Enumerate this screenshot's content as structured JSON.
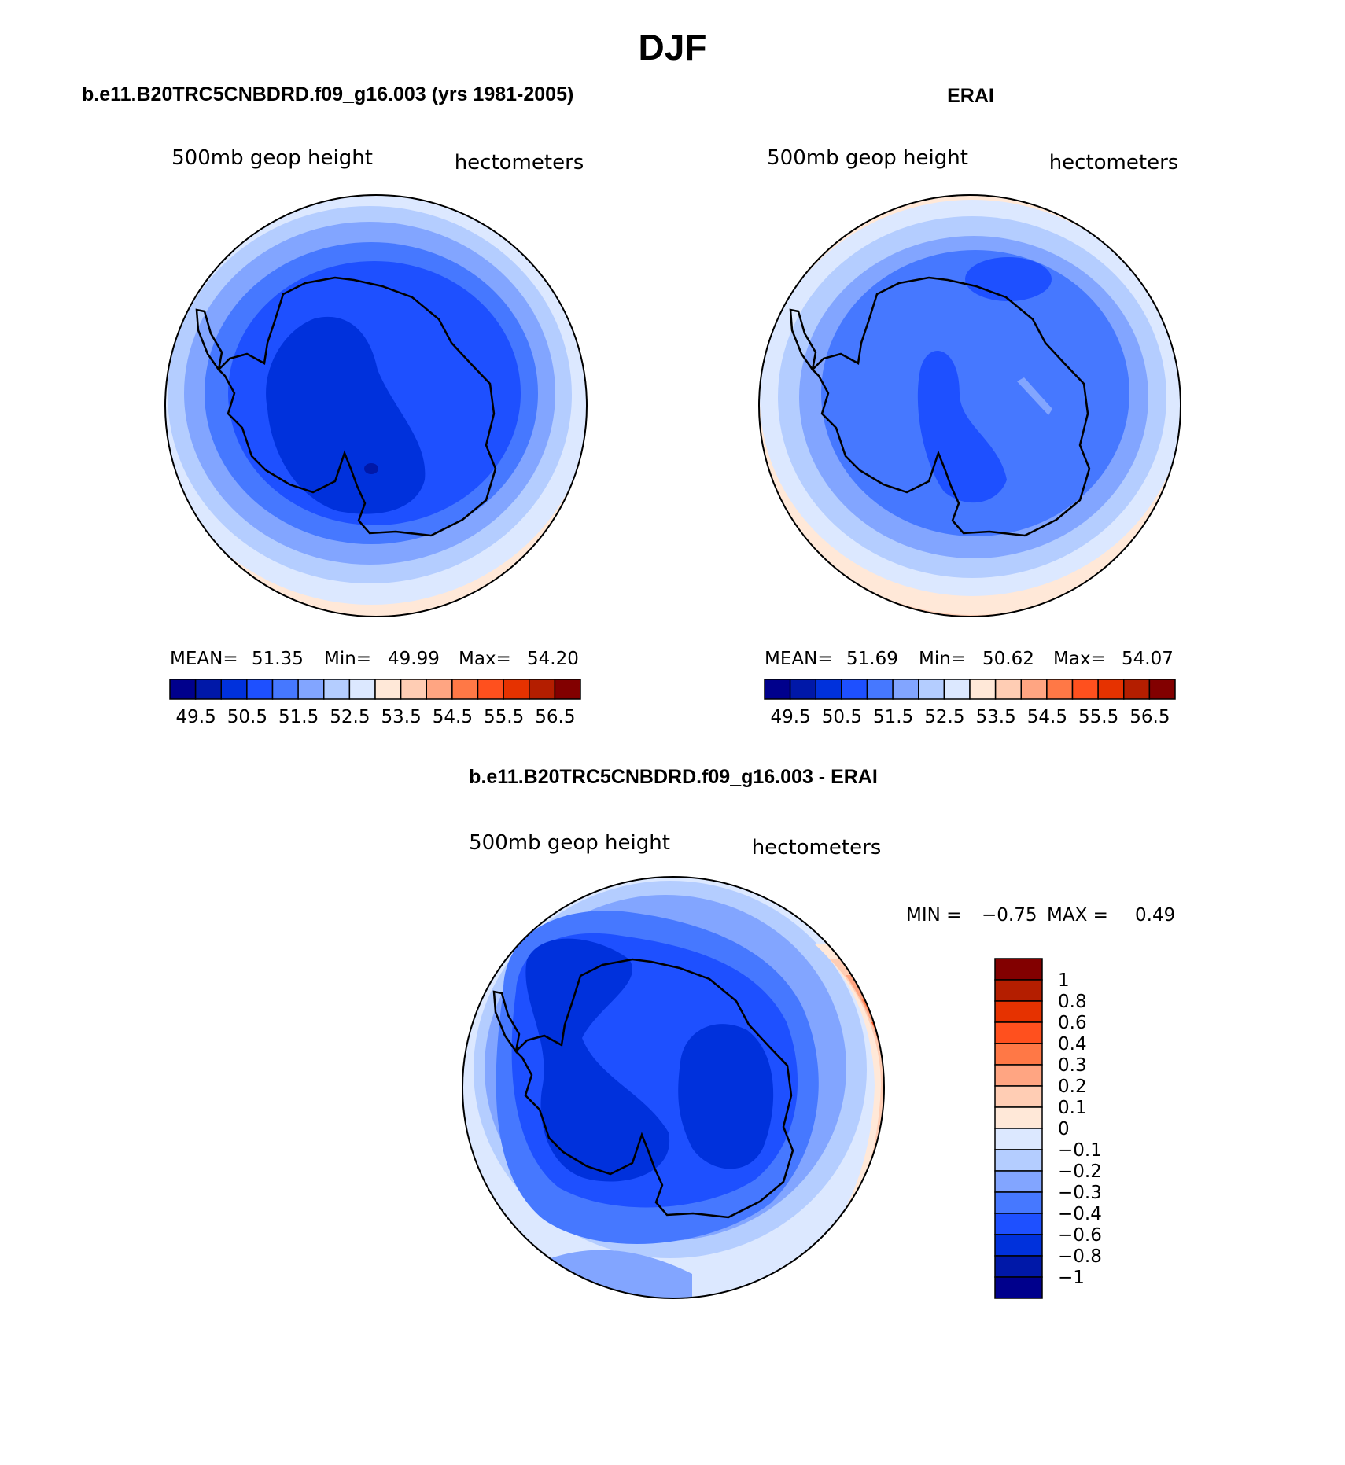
{
  "figure": {
    "season": "DJF",
    "case_title": "b.e11.B20TRC5CNBDRD.f09_g16.003 (yrs 1981-2005)",
    "obs_title": "ERAI",
    "diff_title": "b.e11.B20TRC5CNBDRD.f09_g16.003 - ERAI"
  },
  "panels": {
    "case": {
      "variable": "500mb geop height",
      "units": "hectometers",
      "stats": {
        "mean_label": "MEAN=",
        "mean": "51.35",
        "min_label": "Min=",
        "min": "49.99",
        "max_label": "Max=",
        "max": "54.20"
      }
    },
    "obs": {
      "variable": "500mb geop height",
      "units": "hectometers",
      "stats": {
        "mean_label": "MEAN=",
        "mean": "51.69",
        "min_label": "Min=",
        "min": "50.62",
        "max_label": "Max=",
        "max": "54.07"
      }
    },
    "diff": {
      "variable": "500mb geop height",
      "units": "hectometers",
      "stats": {
        "min_label": "MIN =",
        "min": "−0.75",
        "max_label": "MAX =",
        "max": "0.49"
      }
    }
  },
  "colorbars": {
    "abs_labels": [
      "49.5",
      "50.5",
      "51.5",
      "52.5",
      "53.5",
      "54.5",
      "55.5",
      "56.5"
    ],
    "abs_colors": [
      "#00008c",
      "#0018a8",
      "#0031dc",
      "#1e50ff",
      "#4678ff",
      "#82a5ff",
      "#b4cdff",
      "#dce8ff",
      "#ffe8d8",
      "#ffcdb4",
      "#ffa582",
      "#ff7846",
      "#ff501e",
      "#e63200",
      "#b41e00",
      "#820000"
    ],
    "diff_labels": [
      "1",
      "0.8",
      "0.6",
      "0.4",
      "0.3",
      "0.2",
      "0.1",
      "0",
      "−0.1",
      "−0.2",
      "−0.3",
      "−0.4",
      "−0.6",
      "−0.8",
      "−1"
    ],
    "diff_colors": [
      "#820000",
      "#b41e00",
      "#e63200",
      "#ff501e",
      "#ff7846",
      "#ffa582",
      "#ffcdb4",
      "#ffe8d8",
      "#dce8ff",
      "#b4cdff",
      "#82a5ff",
      "#4678ff",
      "#1e50ff",
      "#0031dc",
      "#0018a8",
      "#00008c"
    ]
  }
}
